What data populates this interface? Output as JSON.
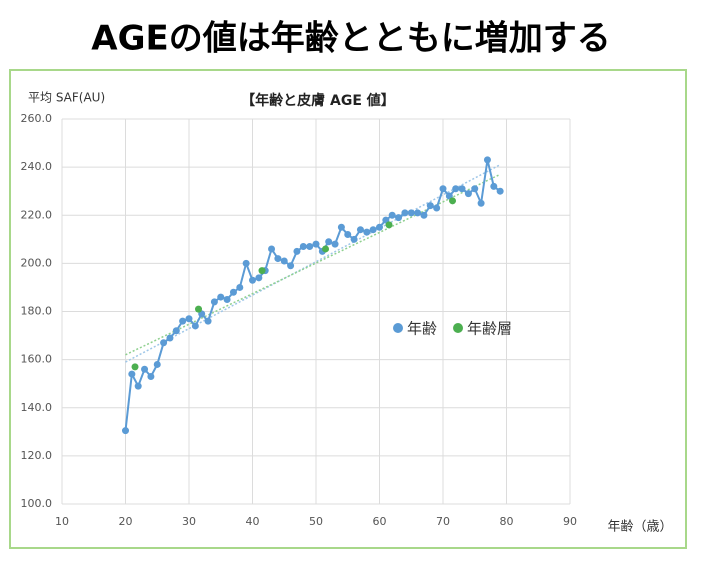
{
  "page_title": "AGEの値は年齢とともに増加する",
  "chart_data": {
    "type": "line",
    "title": "【年齢と皮膚 AGE 値】",
    "ylabel": "平均 SAF(AU)",
    "xlabel": "年齢（歳）",
    "xlim": [
      10,
      90
    ],
    "xticks": [
      10,
      20,
      30,
      40,
      50,
      60,
      70,
      80,
      90
    ],
    "ylim": [
      100,
      260
    ],
    "yticks": [
      {
        "value": 100,
        "label": "100.0"
      },
      {
        "value": 120,
        "label": "120.0"
      },
      {
        "value": 140,
        "label": "140.0"
      },
      {
        "value": 160,
        "label": "160.0"
      },
      {
        "value": 180,
        "label": "180.0"
      },
      {
        "value": 200,
        "label": "200.0"
      },
      {
        "value": 220,
        "label": "220.0"
      },
      {
        "value": 240,
        "label": "240.0"
      },
      {
        "value": 260,
        "label": "260.0"
      }
    ],
    "grid": true,
    "series": [
      {
        "name": "年齢",
        "color": "#5b9bd5",
        "style": "line",
        "x": [
          20,
          21,
          22,
          23,
          24,
          25,
          26,
          27,
          28,
          29,
          30,
          31,
          32,
          33,
          34,
          35,
          36,
          37,
          38,
          39,
          40,
          41,
          42,
          43,
          44,
          45,
          46,
          47,
          48,
          49,
          50,
          51,
          52,
          53,
          54,
          55,
          56,
          57,
          58,
          59,
          60,
          61,
          62,
          63,
          64,
          65,
          66,
          67,
          68,
          69,
          70,
          71,
          72,
          73,
          74,
          75,
          76,
          77,
          78,
          79
        ],
        "values": [
          130.5,
          154,
          149,
          156,
          153,
          158,
          167,
          169,
          172,
          176,
          177,
          174,
          179,
          176,
          184,
          186,
          185,
          188,
          190,
          200,
          193,
          194,
          197,
          206,
          202,
          201,
          199,
          205,
          207,
          207,
          208,
          205,
          209,
          208,
          215,
          212,
          210,
          214,
          213,
          214,
          215,
          218,
          220,
          219,
          221,
          221,
          221,
          220,
          224,
          223,
          231,
          228,
          231,
          231,
          229,
          231,
          225,
          243,
          232,
          230
        ]
      },
      {
        "name": "年齢層",
        "color": "#4caf50",
        "style": "points",
        "x": [
          21.5,
          31.5,
          41.5,
          51.5,
          61.5,
          71.5
        ],
        "values": [
          157,
          181,
          197,
          206,
          216,
          226
        ]
      }
    ],
    "trendlines": [
      {
        "color": "#9ec6e8",
        "x": [
          20,
          79
        ],
        "values": [
          159,
          241
        ]
      },
      {
        "color": "#8fd08f",
        "x": [
          20,
          79
        ],
        "values": [
          162,
          237
        ]
      }
    ],
    "legend": "right"
  }
}
